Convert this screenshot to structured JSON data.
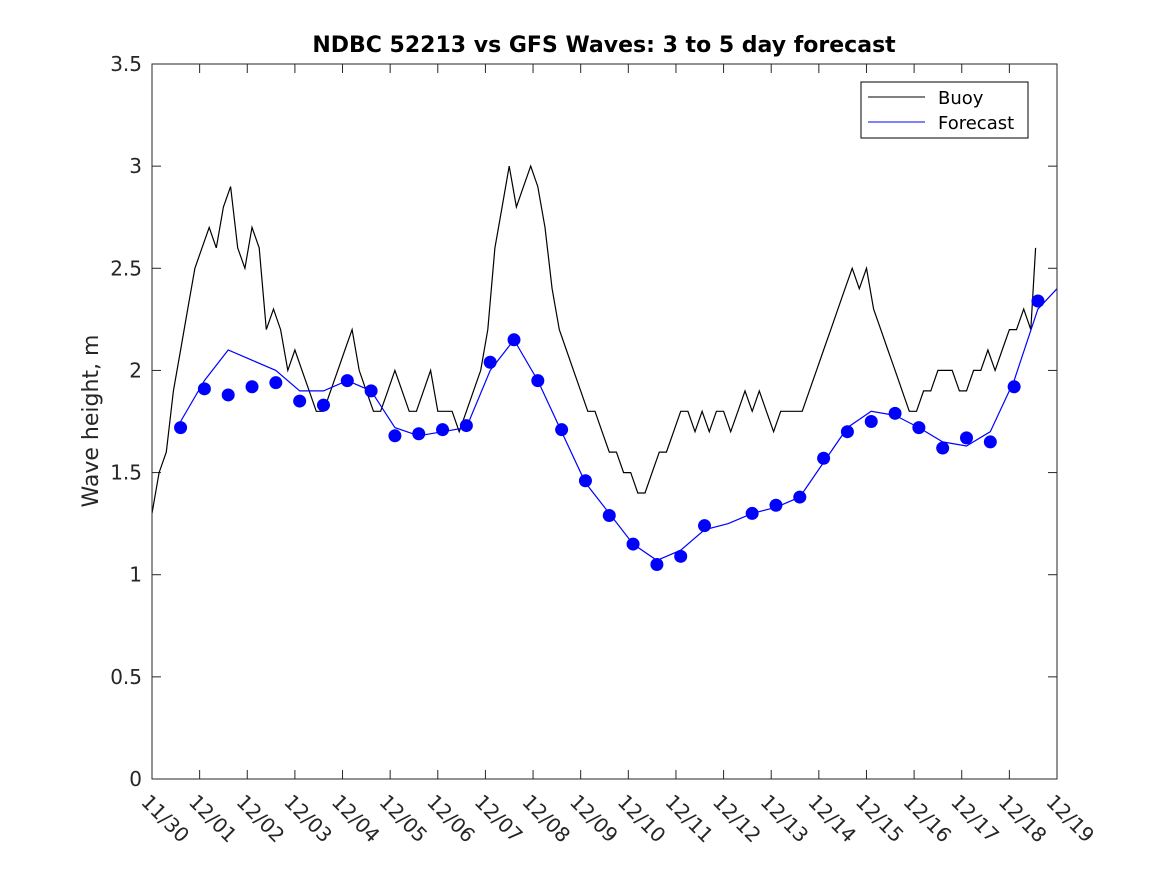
{
  "chart_data": {
    "type": "line",
    "title": "NDBC 52213 vs GFS Waves: 3 to 5 day forecast",
    "xlabel": "",
    "ylabel": "Wave height, m",
    "x_unit": "days since 11/30",
    "xlim": [
      0,
      19
    ],
    "ylim": [
      0,
      3.5
    ],
    "yticks": [
      0,
      0.5,
      1,
      1.5,
      2,
      2.5,
      3,
      3.5
    ],
    "ytick_labels": [
      "0",
      "0.5",
      "1",
      "1.5",
      "2",
      "2.5",
      "3",
      "3.5"
    ],
    "xtick_labels": [
      "11/30",
      "12/01",
      "12/02",
      "12/03",
      "12/04",
      "12/05",
      "12/06",
      "12/07",
      "12/08",
      "12/09",
      "12/10",
      "12/11",
      "12/12",
      "12/13",
      "12/14",
      "12/15",
      "12/16",
      "12/17",
      "12/18",
      "12/19"
    ],
    "legend": {
      "location": "top-right",
      "entries": [
        "Buoy",
        "Forecast"
      ]
    },
    "colors": {
      "buoy": "#000000",
      "forecast": "#0000ff"
    },
    "series": [
      {
        "name": "Buoy",
        "color": "#000000",
        "x": [
          0.0,
          0.15,
          0.3,
          0.45,
          0.6,
          0.75,
          0.9,
          1.05,
          1.2,
          1.35,
          1.5,
          1.65,
          1.8,
          1.95,
          2.1,
          2.25,
          2.4,
          2.55,
          2.7,
          2.85,
          3.0,
          3.15,
          3.3,
          3.45,
          3.6,
          3.75,
          3.9,
          4.05,
          4.2,
          4.35,
          4.5,
          4.65,
          4.8,
          4.95,
          5.1,
          5.25,
          5.4,
          5.55,
          5.7,
          5.85,
          6.0,
          6.15,
          6.3,
          6.45,
          6.6,
          6.75,
          6.9,
          7.05,
          7.2,
          7.35,
          7.5,
          7.65,
          7.8,
          7.95,
          8.1,
          8.25,
          8.4,
          8.55,
          8.7,
          8.85,
          9.0,
          9.15,
          9.3,
          9.45,
          9.6,
          9.75,
          9.9,
          10.05,
          10.2,
          10.35,
          10.5,
          10.65,
          10.8,
          10.95,
          11.1,
          11.25,
          11.4,
          11.55,
          11.7,
          11.85,
          12.0,
          12.15,
          12.3,
          12.45,
          12.6,
          12.75,
          12.9,
          13.05,
          13.2,
          13.35,
          13.5,
          13.65,
          13.8,
          13.95,
          14.1,
          14.25,
          14.4,
          14.55,
          14.7,
          14.85,
          15.0,
          15.15,
          15.3,
          15.45,
          15.6,
          15.75,
          15.9,
          16.05,
          16.2,
          16.35,
          16.5,
          16.65,
          16.8,
          16.95,
          17.1,
          17.25,
          17.4,
          17.55,
          17.7,
          17.85,
          18.0,
          18.15,
          18.3,
          18.45,
          18.55
        ],
        "values": [
          1.3,
          1.5,
          1.6,
          1.9,
          2.1,
          2.3,
          2.5,
          2.6,
          2.7,
          2.6,
          2.8,
          2.9,
          2.6,
          2.5,
          2.7,
          2.6,
          2.2,
          2.3,
          2.2,
          2.0,
          2.1,
          2.0,
          1.9,
          1.8,
          1.8,
          1.9,
          2.0,
          2.1,
          2.2,
          2.0,
          1.9,
          1.8,
          1.8,
          1.9,
          2.0,
          1.9,
          1.8,
          1.8,
          1.9,
          2.0,
          1.8,
          1.8,
          1.8,
          1.7,
          1.8,
          1.9,
          2.0,
          2.2,
          2.6,
          2.8,
          3.0,
          2.8,
          2.9,
          3.0,
          2.9,
          2.7,
          2.4,
          2.2,
          2.1,
          2.0,
          1.9,
          1.8,
          1.8,
          1.7,
          1.6,
          1.6,
          1.5,
          1.5,
          1.4,
          1.4,
          1.5,
          1.6,
          1.6,
          1.7,
          1.8,
          1.8,
          1.7,
          1.8,
          1.7,
          1.8,
          1.8,
          1.7,
          1.8,
          1.9,
          1.8,
          1.9,
          1.8,
          1.7,
          1.8,
          1.8,
          1.8,
          1.8,
          1.9,
          2.0,
          2.1,
          2.2,
          2.3,
          2.4,
          2.5,
          2.4,
          2.5,
          2.3,
          2.2,
          2.1,
          2.0,
          1.9,
          1.8,
          1.8,
          1.9,
          1.9,
          2.0,
          2.0,
          2.0,
          1.9,
          1.9,
          2.0,
          2.0,
          2.1,
          2.0,
          2.1,
          2.2,
          2.2,
          2.3,
          2.2,
          2.6
        ]
      },
      {
        "name": "Forecast",
        "color": "#0000ff",
        "x": [
          0.6,
          1.1,
          1.6,
          2.1,
          2.6,
          3.1,
          3.6,
          4.1,
          4.6,
          5.1,
          5.6,
          6.1,
          6.6,
          7.1,
          7.6,
          8.1,
          8.6,
          9.1,
          9.6,
          10.1,
          10.6,
          11.1,
          11.6,
          12.1,
          12.6,
          13.1,
          13.6,
          14.1,
          14.6,
          15.1,
          15.6,
          16.1,
          16.6,
          17.1,
          17.6,
          18.1,
          18.6,
          19.0
        ],
        "values": [
          1.75,
          1.95,
          2.1,
          2.05,
          2.0,
          1.9,
          1.9,
          1.95,
          1.9,
          1.72,
          1.68,
          1.7,
          1.72,
          2.0,
          2.15,
          1.95,
          1.7,
          1.45,
          1.3,
          1.15,
          1.07,
          1.12,
          1.22,
          1.25,
          1.3,
          1.33,
          1.38,
          1.55,
          1.72,
          1.8,
          1.78,
          1.72,
          1.65,
          1.63,
          1.7,
          1.95,
          2.3,
          2.4
        ]
      },
      {
        "name": "Forecast markers",
        "color": "#0000ff",
        "x": [
          0.6,
          1.1,
          1.6,
          2.1,
          2.6,
          3.1,
          3.6,
          4.1,
          4.6,
          5.1,
          5.6,
          6.1,
          6.6,
          7.1,
          7.6,
          8.1,
          8.6,
          9.1,
          9.6,
          10.1,
          10.6,
          11.1,
          11.6,
          12.6,
          13.1,
          13.6,
          14.1,
          14.6,
          15.1,
          15.6,
          16.1,
          16.6,
          17.1,
          17.6,
          18.1,
          18.6
        ],
        "values": [
          1.72,
          1.91,
          1.88,
          1.92,
          1.94,
          1.85,
          1.83,
          1.95,
          1.9,
          1.68,
          1.69,
          1.71,
          1.73,
          2.04,
          2.15,
          1.95,
          1.71,
          1.46,
          1.29,
          1.15,
          1.05,
          1.09,
          1.24,
          1.3,
          1.34,
          1.38,
          1.57,
          1.7,
          1.75,
          1.79,
          1.72,
          1.62,
          1.67,
          1.65,
          1.92,
          2.34
        ]
      }
    ]
  }
}
